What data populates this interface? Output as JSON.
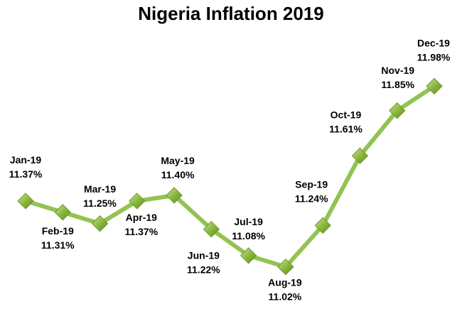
{
  "chart_data": {
    "type": "line",
    "title": "Nigeria Inflation 2019",
    "xlabel": "",
    "ylabel": "",
    "grid": false,
    "legend": "none",
    "categories": [
      "Jan-19",
      "Feb-19",
      "Mar-19",
      "Apr-19",
      "May-19",
      "Jun-19",
      "Jul-19",
      "Aug-19",
      "Sep-19",
      "Oct-19",
      "Nov-19",
      "Dec-19"
    ],
    "series": [
      {
        "values": [
          11.37,
          11.31,
          11.25,
          11.37,
          11.4,
          11.22,
          11.08,
          11.02,
          11.24,
          11.61,
          11.85,
          11.98
        ],
        "value_labels": [
          "11.37%",
          "11.31%",
          "11.25%",
          "11.37%",
          "11.40%",
          "11.22%",
          "11.08%",
          "11.02%",
          "11.24%",
          "11.61%",
          "11.85%",
          "11.98%"
        ],
        "line_color": "#92C353",
        "marker_color": "#8DB83E",
        "marker": "diamond"
      }
    ]
  }
}
